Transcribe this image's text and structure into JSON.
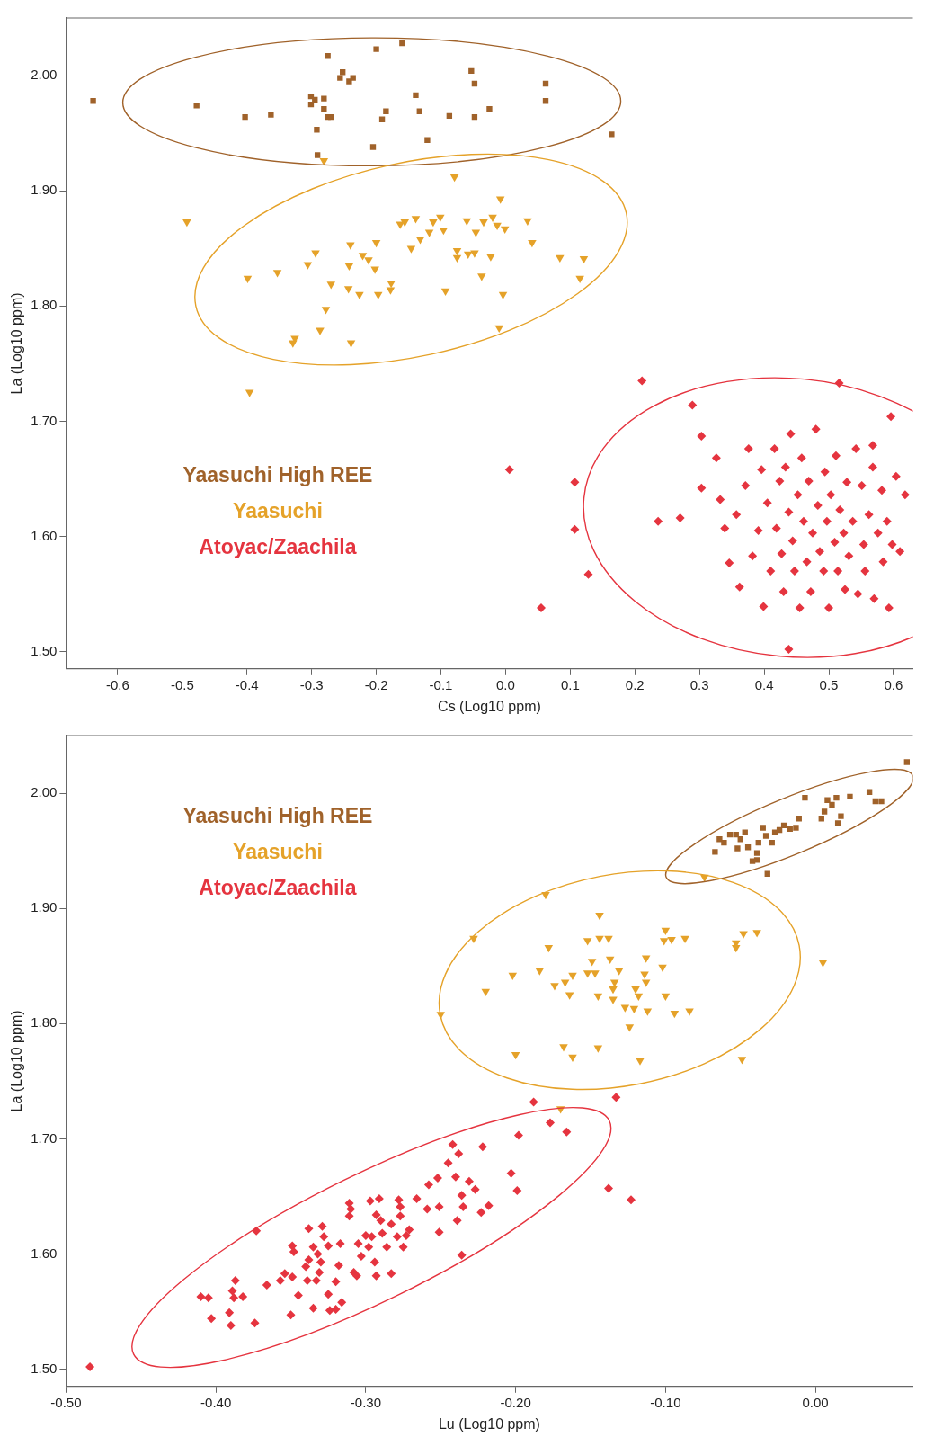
{
  "chart_data": [
    {
      "type": "scatter",
      "xlabel": "Cs (Log10 ppm)",
      "ylabel": "La (Log10 ppm)",
      "xlim": [
        -0.68,
        0.63
      ],
      "ylim": [
        1.485,
        2.05
      ],
      "xticks": [
        -0.6,
        -0.5,
        -0.4,
        -0.3,
        -0.2,
        -0.1,
        {
          "value": 0,
          "label": "0.0"
        },
        0.1,
        0.2,
        0.3,
        0.4,
        0.5,
        0.6
      ],
      "yticks": [
        {
          "value": 1.5,
          "label": "1.50"
        },
        {
          "value": 1.6,
          "label": "1.60"
        },
        {
          "value": 1.7,
          "label": "1.70"
        },
        {
          "value": 1.8,
          "label": "1.80"
        },
        {
          "value": 1.9,
          "label": "1.90"
        },
        {
          "value": 2.0,
          "label": "2.00"
        }
      ],
      "legend": "left",
      "series": [
        {
          "name": "Yaasuchi High REE",
          "color": "#a0622a",
          "marker": "square",
          "x": [
            -0.638,
            -0.478,
            -0.403,
            -0.363,
            -0.301,
            -0.301,
            -0.295,
            -0.281,
            -0.275,
            -0.291,
            -0.292,
            -0.281,
            -0.275,
            -0.27,
            -0.257,
            -0.252,
            -0.256,
            -0.242,
            -0.236,
            -0.2,
            -0.205,
            -0.191,
            -0.185,
            -0.16,
            -0.139,
            -0.133,
            -0.121,
            -0.087,
            -0.053,
            -0.048,
            -0.048,
            -0.025,
            0.062,
            0.062,
            0.164
          ],
          "values": [
            1.978,
            1.974,
            1.964,
            1.966,
            1.975,
            1.982,
            1.979,
            1.98,
            2.017,
            1.931,
            1.953,
            1.971,
            1.964,
            1.964,
            null,
            2.003,
            1.998,
            1.995,
            1.998,
            2.023,
            1.938,
            1.962,
            1.969,
            2.028,
            1.983,
            1.969,
            1.944,
            1.965,
            2.004,
            1.993,
            1.964,
            1.971,
            1.993,
            1.978,
            1.949
          ]
        },
        {
          "name": "Yaasuchi",
          "color": "#e5a229",
          "marker": "triangle",
          "x": [
            -0.493,
            -0.399,
            -0.353,
            -0.306,
            -0.294,
            -0.281,
            -0.278,
            -0.27,
            -0.287,
            -0.326,
            -0.329,
            -0.239,
            -0.24,
            -0.243,
            -0.242,
            -0.226,
            -0.221,
            -0.212,
            -0.202,
            -0.2,
            -0.197,
            -0.178,
            -0.177,
            -0.163,
            -0.156,
            -0.146,
            -0.139,
            -0.132,
            -0.118,
            -0.112,
            -0.101,
            -0.096,
            -0.093,
            -0.079,
            -0.075,
            -0.075,
            -0.06,
            -0.058,
            -0.048,
            -0.046,
            -0.034,
            -0.037,
            -0.023,
            -0.02,
            -0.013,
            -0.008,
            -0.004,
            -0.01,
            -0.001,
            0.034,
            0.041,
            0.084,
            0.115,
            0.121,
            -0.396
          ],
          "values": [
            1.873,
            1.824,
            1.829,
            1.836,
            1.846,
            1.926,
            1.797,
            1.819,
            1.779,
            1.772,
            1.768,
            1.768,
            1.853,
            1.815,
            1.835,
            1.81,
            1.844,
            1.84,
            1.832,
            1.855,
            1.81,
            1.814,
            1.82,
            1.871,
            1.873,
            1.85,
            1.876,
            1.858,
            1.864,
            1.873,
            1.877,
            1.866,
            1.813,
            1.912,
            1.848,
            1.842,
            1.874,
            1.845,
            1.846,
            1.864,
            1.873,
            1.826,
            1.843,
            1.877,
            1.87,
            1.893,
            1.81,
            1.781,
            1.867,
            1.874,
            1.855,
            1.842,
            1.824,
            1.841,
            1.725
          ]
        },
        {
          "name": "Atoyac/Zaachila",
          "color": "#e5343f",
          "marker": "diamond",
          "x": [
            0.303,
            0.326,
            0.332,
            0.339,
            0.346,
            0.357,
            0.362,
            0.371,
            0.376,
            0.382,
            0.391,
            0.396,
            0.399,
            0.405,
            0.41,
            0.416,
            0.419,
            0.424,
            0.427,
            0.43,
            0.433,
            0.438,
            0.441,
            0.444,
            0.447,
            0.452,
            0.455,
            0.458,
            0.461,
            0.466,
            0.469,
            0.472,
            0.475,
            0.48,
            0.483,
            0.486,
            0.492,
            0.494,
            0.497,
            0.5,
            0.503,
            0.509,
            0.511,
            0.514,
            0.517,
            0.523,
            0.525,
            0.528,
            0.531,
            0.537,
            0.542,
            0.545,
            0.551,
            0.554,
            0.556,
            0.562,
            0.568,
            0.57,
            0.576,
            0.582,
            0.584,
            0.59,
            0.593,
            0.598,
            0.604,
            0.61,
            0.618,
            0.568,
            0.006,
            0.055,
            0.107,
            0.107,
            0.128,
            0.211,
            0.289,
            0.236,
            0.27,
            0.303,
            0.516,
            0.438,
            0.596
          ],
          "values": [
            1.642,
            1.668,
            1.632,
            1.607,
            1.577,
            1.619,
            1.556,
            1.644,
            1.676,
            1.583,
            1.605,
            1.658,
            1.539,
            1.629,
            1.57,
            1.676,
            1.607,
            1.648,
            1.585,
            1.552,
            1.66,
            1.621,
            1.689,
            1.596,
            1.57,
            1.636,
            1.538,
            1.668,
            1.613,
            1.578,
            1.648,
            1.552,
            1.603,
            1.693,
            1.627,
            1.587,
            1.57,
            1.656,
            1.613,
            1.538,
            1.636,
            1.595,
            1.67,
            1.57,
            1.623,
            1.603,
            1.554,
            1.647,
            1.583,
            1.613,
            1.676,
            1.55,
            1.644,
            1.593,
            1.57,
            1.619,
            1.66,
            1.546,
            1.603,
            1.64,
            1.578,
            1.613,
            1.538,
            1.593,
            1.652,
            1.587,
            1.636,
            1.679,
            1.658,
            1.538,
            1.647,
            1.606,
            1.567,
            1.735,
            1.714,
            1.613,
            1.616,
            1.687,
            1.733,
            1.502,
            1.704
          ]
        }
      ]
    },
    {
      "type": "scatter",
      "xlabel": "Lu (Log10 ppm)",
      "ylabel": "La (Log10 ppm)",
      "xlim": [
        -0.5,
        0.065
      ],
      "ylim": [
        1.485,
        2.05
      ],
      "xticks": [
        {
          "value": -0.5,
          "label": "-0.50"
        },
        {
          "value": -0.4,
          "label": "-0.40"
        },
        {
          "value": -0.3,
          "label": "-0.30"
        },
        {
          "value": -0.2,
          "label": "-0.20"
        },
        {
          "value": -0.1,
          "label": "-0.10"
        },
        {
          "value": 0,
          "label": "0.00"
        }
      ],
      "yticks": [
        {
          "value": 1.5,
          "label": "1.50"
        },
        {
          "value": 1.6,
          "label": "1.60"
        },
        {
          "value": 1.7,
          "label": "1.70"
        },
        {
          "value": 1.8,
          "label": "1.80"
        },
        {
          "value": 1.9,
          "label": "1.90"
        },
        {
          "value": 2.0,
          "label": "2.00"
        }
      ],
      "legend": "top left",
      "series": [
        {
          "name": "Yaasuchi High REE",
          "color": "#a0622a",
          "marker": "square",
          "x": [
            -0.067,
            -0.064,
            -0.061,
            -0.057,
            -0.053,
            -0.05,
            -0.047,
            -0.045,
            -0.042,
            -0.039,
            -0.038,
            -0.035,
            -0.033,
            -0.032,
            -0.029,
            -0.027,
            -0.024,
            -0.021,
            -0.017,
            -0.013,
            -0.011,
            -0.007,
            0.004,
            0.006,
            0.008,
            0.011,
            0.014,
            0.017,
            0.023,
            0.036,
            0.04,
            0.044,
            0.061,
            0.015,
            -0.052,
            -0.039
          ],
          "values": [
            1.949,
            1.96,
            1.957,
            1.964,
            1.964,
            1.96,
            1.966,
            1.953,
            1.941,
            1.948,
            1.957,
            1.97,
            1.963,
            1.93,
            1.957,
            1.966,
            1.968,
            1.972,
            1.969,
            1.97,
            1.978,
            1.996,
            1.978,
            1.984,
            1.994,
            1.99,
            1.996,
            1.98,
            1.997,
            2.001,
            1.993,
            1.993,
            2.027,
            1.974,
            1.952,
            1.942
          ]
        },
        {
          "name": "Yaasuchi",
          "color": "#e5a229",
          "marker": "triangle",
          "x": [
            -0.25,
            -0.228,
            -0.22,
            -0.202,
            -0.2,
            -0.184,
            -0.18,
            -0.178,
            -0.174,
            -0.168,
            -0.167,
            -0.164,
            -0.162,
            -0.162,
            -0.152,
            -0.152,
            -0.149,
            -0.147,
            -0.145,
            -0.145,
            -0.144,
            -0.144,
            -0.138,
            -0.137,
            -0.135,
            -0.135,
            -0.134,
            -0.131,
            -0.127,
            -0.124,
            -0.121,
            -0.12,
            -0.118,
            -0.117,
            -0.114,
            -0.113,
            -0.113,
            -0.112,
            -0.102,
            -0.101,
            -0.1,
            -0.1,
            -0.096,
            -0.094,
            -0.087,
            -0.084,
            -0.074,
            -0.053,
            -0.053,
            -0.048,
            -0.049,
            -0.039,
            0.005,
            -0.17
          ],
          "values": [
            1.808,
            1.874,
            1.828,
            1.842,
            1.773,
            1.846,
            1.912,
            1.866,
            1.833,
            1.78,
            1.836,
            1.825,
            1.842,
            1.771,
            1.872,
            1.844,
            1.854,
            1.844,
            1.824,
            1.779,
            1.894,
            1.874,
            1.874,
            1.856,
            1.821,
            1.83,
            1.836,
            1.846,
            1.814,
            1.797,
            1.813,
            1.83,
            1.824,
            1.768,
            1.843,
            1.836,
            1.857,
            1.811,
            1.849,
            1.872,
            1.881,
            1.824,
            1.873,
            1.809,
            1.874,
            1.811,
            1.927,
            1.87,
            1.866,
            1.878,
            1.769,
            1.879,
            1.853,
            1.726
          ]
        },
        {
          "name": "Atoyac/Zaachila",
          "color": "#e5343f",
          "marker": "diamond",
          "x": [
            -0.41,
            -0.405,
            -0.403,
            -0.391,
            -0.39,
            -0.387,
            -0.389,
            -0.388,
            -0.382,
            -0.374,
            -0.373,
            -0.366,
            -0.357,
            -0.354,
            -0.349,
            -0.35,
            -0.349,
            -0.348,
            -0.345,
            -0.34,
            -0.339,
            -0.338,
            -0.338,
            -0.335,
            -0.335,
            -0.333,
            -0.332,
            -0.331,
            -0.33,
            -0.329,
            -0.328,
            -0.325,
            -0.325,
            -0.324,
            -0.32,
            -0.32,
            -0.318,
            -0.317,
            -0.316,
            -0.311,
            -0.311,
            -0.31,
            -0.308,
            -0.306,
            -0.305,
            -0.303,
            -0.3,
            -0.298,
            -0.297,
            -0.296,
            -0.294,
            -0.293,
            -0.293,
            -0.291,
            -0.29,
            -0.289,
            -0.286,
            -0.283,
            -0.283,
            -0.278,
            -0.277,
            -0.277,
            -0.279,
            -0.275,
            -0.273,
            -0.271,
            -0.266,
            -0.258,
            -0.259,
            -0.252,
            -0.251,
            -0.251,
            -0.245,
            -0.242,
            -0.238,
            -0.24,
            -0.239,
            -0.236,
            -0.235,
            -0.236,
            -0.231,
            -0.227,
            -0.223,
            -0.222,
            -0.218,
            -0.203,
            -0.199,
            -0.198,
            -0.188,
            -0.177,
            -0.166,
            -0.138,
            -0.133,
            -0.123,
            -0.484
          ],
          "values": [
            1.563,
            1.562,
            1.544,
            1.549,
            1.538,
            1.577,
            1.568,
            1.562,
            1.563,
            1.54,
            1.62,
            1.573,
            1.577,
            1.583,
            1.58,
            1.547,
            1.607,
            1.602,
            1.564,
            1.589,
            1.577,
            1.622,
            1.595,
            1.553,
            1.606,
            1.577,
            1.6,
            1.584,
            1.593,
            1.624,
            1.615,
            1.607,
            1.565,
            1.551,
            1.576,
            1.552,
            1.59,
            1.609,
            1.558,
            1.644,
            1.633,
            1.639,
            1.584,
            1.581,
            1.609,
            1.598,
            1.616,
            1.606,
            1.646,
            1.615,
            1.593,
            1.581,
            1.634,
            1.648,
            1.629,
            1.618,
            1.606,
            1.626,
            1.583,
            1.647,
            1.641,
            1.633,
            1.615,
            1.606,
            1.616,
            1.621,
            1.648,
            1.66,
            1.639,
            1.666,
            1.641,
            1.619,
            1.679,
            1.695,
            1.687,
            1.667,
            1.629,
            1.651,
            1.641,
            1.599,
            1.663,
            1.656,
            1.636,
            1.693,
            1.642,
            1.67,
            1.655,
            1.703,
            1.732,
            1.714,
            1.706,
            1.657,
            1.736,
            1.647,
            1.502
          ]
        }
      ]
    }
  ]
}
